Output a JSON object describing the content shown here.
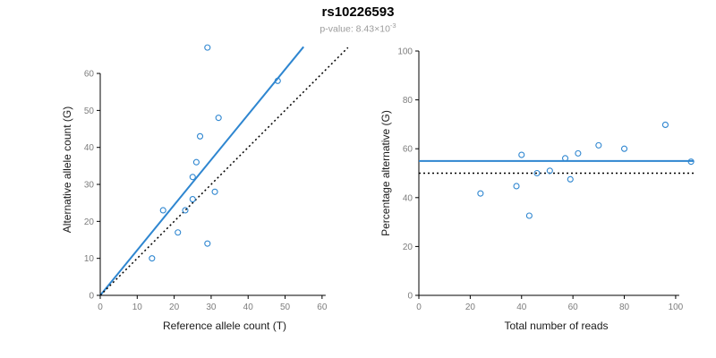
{
  "header": {
    "title": "rs10226593",
    "subtitle_main": "p-value: 8.43×10",
    "subtitle_exponent": "-3"
  },
  "colors": {
    "accent_blue": "#2E86D0",
    "line_black": "#000000"
  },
  "chart_data": [
    {
      "type": "scatter",
      "title": "",
      "xlabel": "Reference allele count (T)",
      "ylabel": "Alternative allele count (G)",
      "xlim": [
        0,
        67.3
      ],
      "ylim": [
        0,
        68
      ],
      "xticks": [
        0,
        10,
        20,
        30,
        40,
        50,
        60
      ],
      "yticks": [
        0,
        10,
        20,
        30,
        40,
        50,
        60
      ],
      "grid": false,
      "legend": "none",
      "point_color": "#2E86D0",
      "points": [
        [
          14,
          10
        ],
        [
          17,
          23
        ],
        [
          21,
          17
        ],
        [
          23,
          23
        ],
        [
          25,
          26
        ],
        [
          25,
          32
        ],
        [
          26,
          36
        ],
        [
          27,
          43
        ],
        [
          29,
          14
        ],
        [
          29,
          67
        ],
        [
          31,
          28
        ],
        [
          32,
          48
        ],
        [
          48,
          58
        ]
      ],
      "lines": [
        {
          "name": "regression",
          "style": "solid",
          "color": "#2E86D0",
          "x1": 0,
          "y1": 0,
          "x2": 55,
          "y2": 67.2
        },
        {
          "name": "identity",
          "style": "dotted",
          "color": "#000000",
          "x1": 0,
          "y1": 0,
          "x2": 67,
          "y2": 67
        }
      ]
    },
    {
      "type": "scatter",
      "title": "",
      "xlabel": "Total number of reads",
      "ylabel": "Percentage alternative (G)",
      "xlim": [
        0,
        107
      ],
      "ylim": [
        0,
        100
      ],
      "xticks": [
        0,
        20,
        40,
        60,
        80,
        100
      ],
      "yticks": [
        0,
        20,
        40,
        60,
        80,
        100
      ],
      "grid": false,
      "legend": "none",
      "point_color": "#2E86D0",
      "points": [
        [
          24,
          41.7
        ],
        [
          38,
          44.7
        ],
        [
          40,
          57.5
        ],
        [
          43,
          32.6
        ],
        [
          46,
          50
        ],
        [
          51,
          51
        ],
        [
          57,
          56.1
        ],
        [
          59,
          47.5
        ],
        [
          62,
          58.1
        ],
        [
          70,
          61.4
        ],
        [
          80,
          60
        ],
        [
          96,
          69.8
        ],
        [
          106,
          54.7
        ]
      ],
      "lines": [
        {
          "name": "mean-percentage",
          "style": "solid",
          "color": "#2E86D0",
          "x1": 0,
          "y1": 55,
          "x2": 107,
          "y2": 55
        },
        {
          "name": "expected-50pct",
          "style": "dotted",
          "color": "#000000",
          "x1": 0,
          "y1": 50,
          "x2": 107,
          "y2": 50
        }
      ]
    }
  ]
}
